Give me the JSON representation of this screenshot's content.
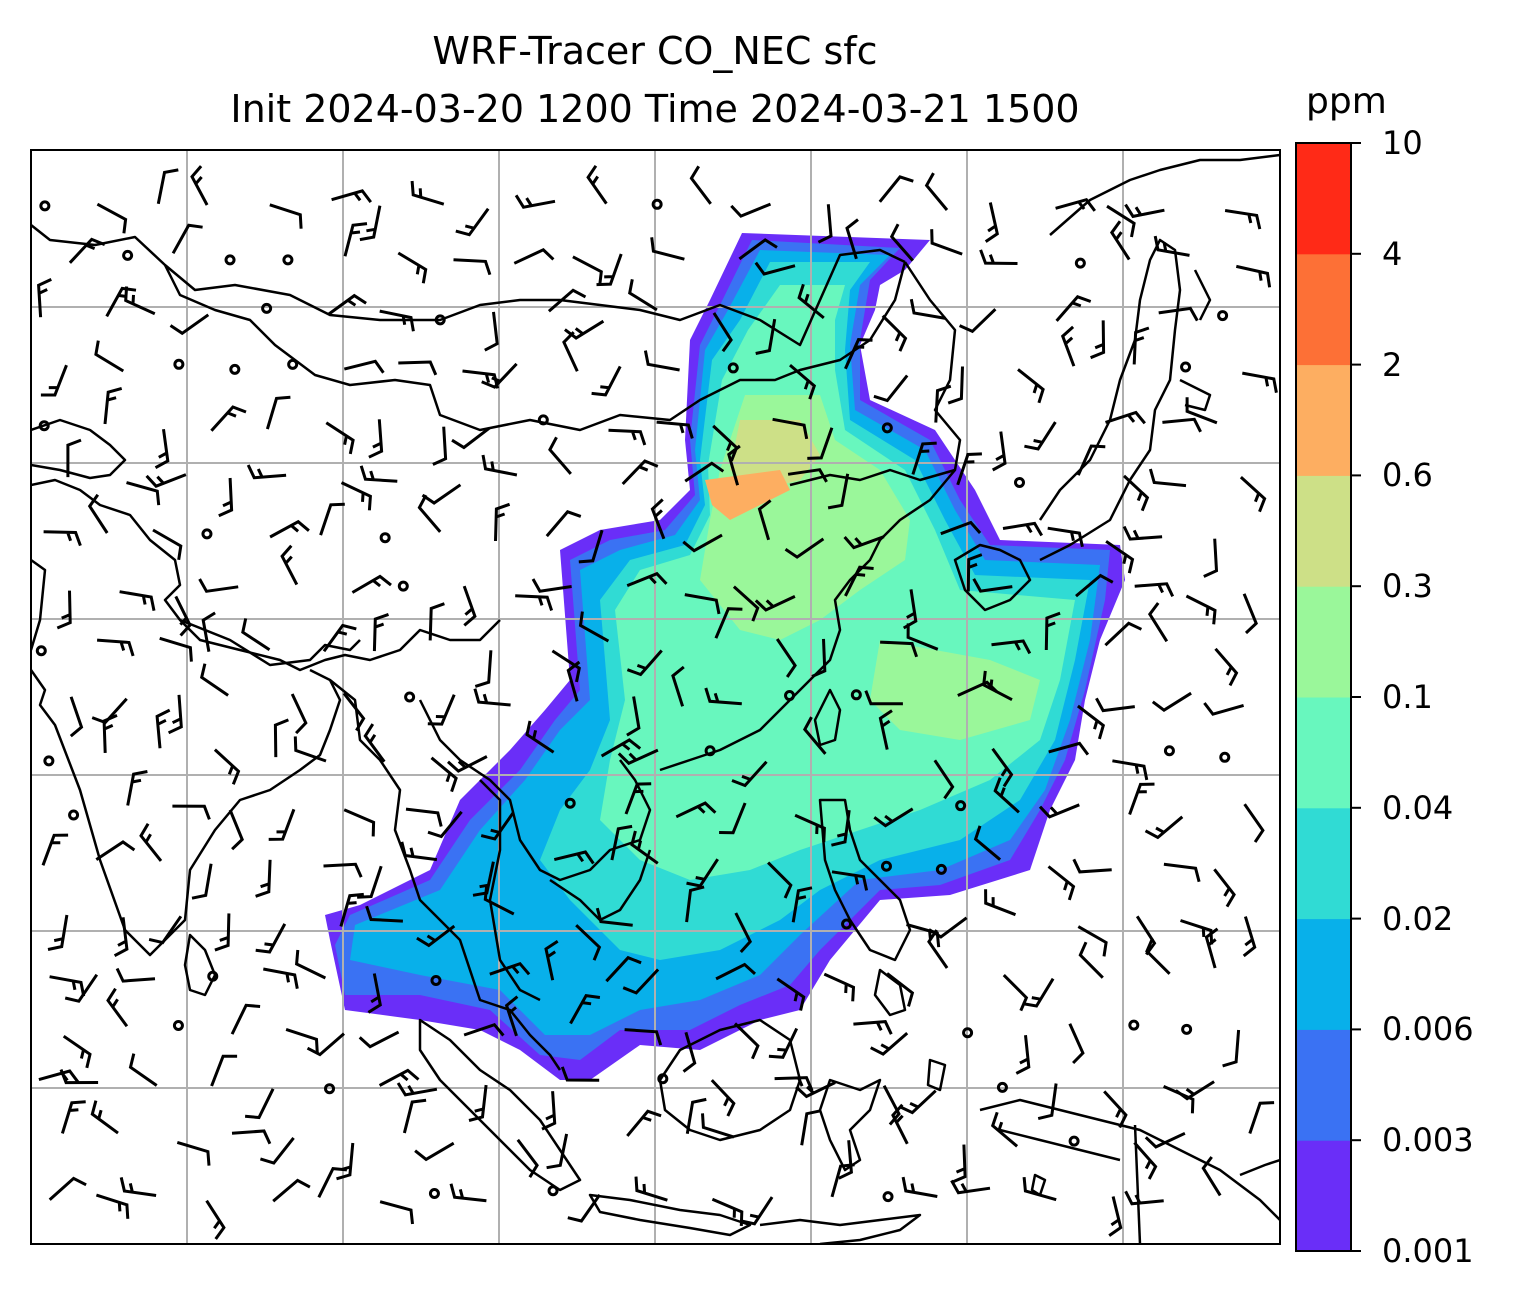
{
  "title_line1": "WRF-Tracer CO_NEC sfc",
  "title_line2": "Init 2024-03-20 1200 Time 2024-03-21 1500",
  "colorbar": {
    "unit": "ppm",
    "ticks": [
      "0.001",
      "0.003",
      "0.006",
      "0.02",
      "0.04",
      "0.1",
      "0.3",
      "0.6",
      "2",
      "4",
      "10"
    ],
    "colors": [
      "#6a2ef8",
      "#3a72f3",
      "#08b0ea",
      "#30dbd4",
      "#68f7be",
      "#9af79a",
      "#cde087",
      "#fdae61",
      "#fd7036",
      "#ff2a17"
    ]
  },
  "map": {
    "gridlines": true,
    "coastline_color": "#000000",
    "barb_color": "#000000",
    "grid_color": "#b0b0b0"
  }
}
